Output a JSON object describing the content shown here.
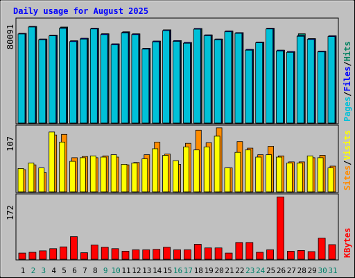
{
  "title": "Daily usage for August 2025",
  "colors": {
    "background": "#c0c0c0",
    "panel": "#c0c0c0",
    "title_text": "#0000ff",
    "hits": "#00805f",
    "files": "#0000ff",
    "pages": "#00c0d8",
    "visits": "#ffff00",
    "sites": "#ff8c00",
    "kbytes": "#ff0000",
    "weekday_label": "#000000",
    "weekend_label": "#00806a"
  },
  "panels": {
    "pages_files_hits": {
      "ymax_label": "80091",
      "legend": [
        {
          "text": "Pages",
          "color": "#00c0d8"
        },
        {
          "text": "/",
          "color": "#000000"
        },
        {
          "text": "Files",
          "color": "#0000ff"
        },
        {
          "text": "/",
          "color": "#000000"
        },
        {
          "text": "Hits",
          "color": "#00805f"
        }
      ]
    },
    "sites_visits": {
      "ymax_label": "107",
      "legend": [
        {
          "text": "Sites",
          "color": "#ff8c00"
        },
        {
          "text": "/",
          "color": "#000000"
        },
        {
          "text": "Visits",
          "color": "#ffff00"
        }
      ]
    },
    "kbytes": {
      "ymax_label": "172",
      "legend": [
        {
          "text": "KBytes",
          "color": "#ff0000"
        }
      ]
    }
  },
  "chart_data": {
    "type": "bar",
    "title": "Daily usage for August 2025",
    "categories": [
      "1",
      "2",
      "3",
      "4",
      "5",
      "6",
      "7",
      "8",
      "9",
      "10",
      "11",
      "12",
      "13",
      "14",
      "15",
      "16",
      "17",
      "18",
      "19",
      "20",
      "21",
      "22",
      "23",
      "24",
      "25",
      "26",
      "27",
      "28",
      "29",
      "30",
      "31"
    ],
    "weekend_days": [
      "2",
      "3",
      "9",
      "10",
      "16",
      "17",
      "23",
      "24",
      "30",
      "31"
    ],
    "panels": [
      {
        "name": "Pages / Files / Hits",
        "ymax": 80091,
        "series": [
          {
            "name": "Hits",
            "values": [
              71000,
              76500,
              66500,
              69600,
              76000,
              65100,
              67100,
              75000,
              70700,
              62700,
              72300,
              70600,
              59100,
              64900,
              73800,
              65300,
              63800,
              74900,
              69800,
              66500,
              72900,
              71600,
              58300,
              64200,
              75000,
              57700,
              56600,
              70700,
              66800,
              56900,
              69100
            ]
          },
          {
            "name": "Files",
            "values": [
              71000,
              76500,
              66500,
              69600,
              75500,
              65100,
              67100,
              75000,
              70700,
              62700,
              71900,
              70600,
              59100,
              64900,
              73800,
              65300,
              63800,
              74900,
              69800,
              66500,
              72900,
              71600,
              58300,
              64200,
              75000,
              57700,
              56600,
              69300,
              66800,
              56900,
              69100
            ]
          },
          {
            "name": "Pages",
            "values": [
              70500,
              76000,
              66000,
              69000,
              75000,
              64500,
              66500,
              74500,
              70000,
              62000,
              71400,
              70000,
              58500,
              64300,
              73200,
              64700,
              63200,
              74300,
              69200,
              66000,
              72300,
              71000,
              57700,
              63600,
              74500,
              57100,
              56000,
              68700,
              66200,
              56300,
              68500
            ]
          }
        ]
      },
      {
        "name": "Sites / Visits",
        "ymax": 107,
        "series": [
          {
            "name": "Sites",
            "values": [
              37,
              45,
              32,
              95,
              96,
              57,
              59,
              57,
              60,
              58,
              45,
              49,
              62,
              83,
              63,
              46,
              81,
              103,
              82,
              107,
              40,
              84,
              73,
              62,
              76,
              60,
              50,
              50,
              57,
              61,
              43
            ]
          },
          {
            "name": "Visits",
            "values": [
              39,
              48,
              40,
              100,
              83,
              51,
              57,
              60,
              58,
              62,
              46,
              48,
              55,
              72,
              61,
              52,
              75,
              70,
              75,
              93,
              40,
              66,
              70,
              58,
              62,
              58,
              48,
              48,
              60,
              57,
              40
            ]
          }
        ]
      },
      {
        "name": "KBytes",
        "ymax": 172,
        "series": [
          {
            "name": "KBytes",
            "values": [
              17,
              19,
              23,
              29,
              34,
              62,
              18,
              39,
              33,
              29,
              22,
              26,
              26,
              27,
              33,
              26,
              26,
              41,
              31,
              31,
              17,
              46,
              46,
              19,
              26,
              171,
              22,
              24,
              21,
              58,
              40
            ]
          }
        ]
      }
    ]
  }
}
